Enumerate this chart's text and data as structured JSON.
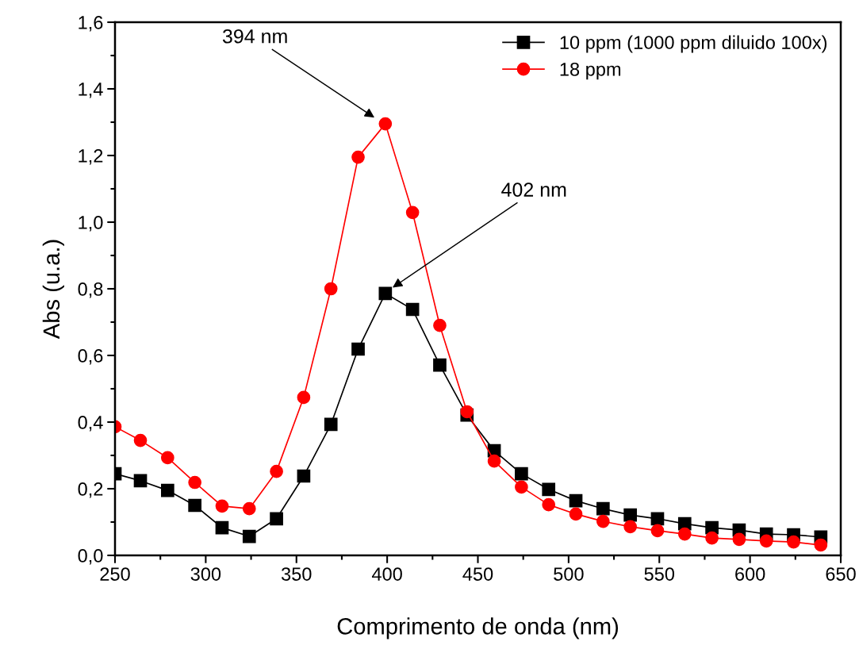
{
  "chart_data": {
    "type": "line",
    "xlabel": "Comprimento de onda (nm)",
    "ylabel": "Abs (u.a.)",
    "x": [
      250,
      264,
      279,
      294,
      309,
      324,
      339,
      354,
      369,
      384,
      399,
      414,
      429,
      444,
      459,
      474,
      489,
      504,
      519,
      534,
      549,
      564,
      579,
      594,
      609,
      624,
      639
    ],
    "series": [
      {
        "name": "10 ppm (1000 ppm diluido 100x)",
        "color": "#000000",
        "marker": "square",
        "values": [
          0.245,
          0.224,
          0.195,
          0.15,
          0.083,
          0.057,
          0.11,
          0.238,
          0.393,
          0.619,
          0.786,
          0.738,
          0.571,
          0.421,
          0.314,
          0.245,
          0.198,
          0.164,
          0.14,
          0.121,
          0.11,
          0.095,
          0.083,
          0.076,
          0.064,
          0.062,
          0.055
        ]
      },
      {
        "name": "18 ppm",
        "color": "#ff0000",
        "marker": "circle",
        "values": [
          0.386,
          0.345,
          0.293,
          0.219,
          0.148,
          0.14,
          0.252,
          0.474,
          0.8,
          1.195,
          1.295,
          1.029,
          0.69,
          0.431,
          0.283,
          0.205,
          0.152,
          0.124,
          0.102,
          0.086,
          0.074,
          0.064,
          0.052,
          0.048,
          0.043,
          0.04,
          0.031
        ]
      }
    ],
    "xlim": [
      250,
      650
    ],
    "xticks": [
      250,
      300,
      350,
      400,
      450,
      500,
      550,
      600,
      650
    ],
    "ylim": [
      0,
      1.6
    ],
    "yticks": [
      {
        "value": 0,
        "label": "0,0"
      },
      {
        "value": 0.2,
        "label": "0,2"
      },
      {
        "value": 0.4,
        "label": "0,4"
      },
      {
        "value": 0.6,
        "label": "0,6"
      },
      {
        "value": 0.8,
        "label": "0,8"
      },
      {
        "value": 1.0,
        "label": "1,0"
      },
      {
        "value": 1.2,
        "label": "1,2"
      },
      {
        "value": 1.4,
        "label": "1,4"
      },
      {
        "value": 1.6,
        "label": "1,6"
      }
    ],
    "annotations": [
      {
        "text": "394 nm",
        "x": 394,
        "y": 1.31
      },
      {
        "text": "402 nm",
        "x": 402,
        "y": 0.8
      }
    ],
    "grid": false,
    "legend": "top right",
    "line_style": "solid"
  }
}
